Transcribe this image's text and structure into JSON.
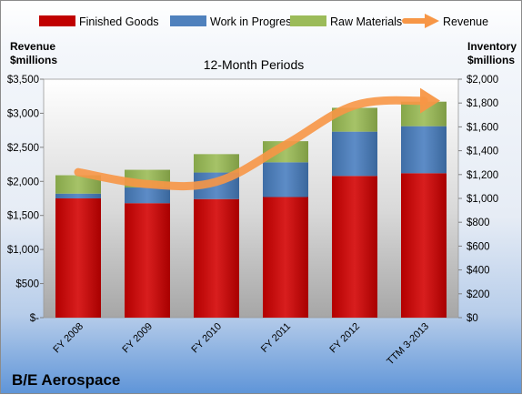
{
  "company": "B/E Aerospace",
  "chart_data": {
    "type": "bar",
    "title": "12-Month Periods",
    "categories": [
      "FY 2008",
      "FY 2009",
      "FY 2010",
      "FY 2011",
      "FY 2012",
      "TTM 3-2013"
    ],
    "stacked": true,
    "series": [
      {
        "name": "Finished Goods",
        "color": "#c00000",
        "axis": "left",
        "values": [
          1750,
          1680,
          1740,
          1770,
          2080,
          2120
        ]
      },
      {
        "name": "Work in Progress",
        "color": "#4f81bd",
        "axis": "left",
        "values": [
          70,
          230,
          390,
          510,
          650,
          690
        ]
      },
      {
        "name": "Raw Materials",
        "color": "#9bbb59",
        "axis": "left",
        "values": [
          270,
          260,
          270,
          310,
          350,
          360
        ]
      }
    ],
    "line_series": {
      "name": "Revenue",
      "color": "#f79646",
      "axis": "right",
      "values": [
        1220,
        1120,
        1140,
        1450,
        1780,
        1820
      ]
    },
    "left_axis": {
      "label_lines": [
        "Revenue",
        "$millions"
      ],
      "ylim": [
        0,
        3500
      ],
      "ticks": [
        "$-",
        "$500",
        "$1,000",
        "$1,500",
        "$2,000",
        "$2,500",
        "$3,000",
        "$3,500"
      ]
    },
    "right_axis": {
      "label_lines": [
        "Inventory",
        "$millions"
      ],
      "ylim": [
        0,
        2000
      ],
      "ticks": [
        "$0",
        "$200",
        "$400",
        "$600",
        "$800",
        "$1,000",
        "$1,200",
        "$1,400",
        "$1,600",
        "$1,800",
        "$2,000"
      ]
    },
    "legend_position": "top",
    "plot_background": "gradient-gray"
  }
}
